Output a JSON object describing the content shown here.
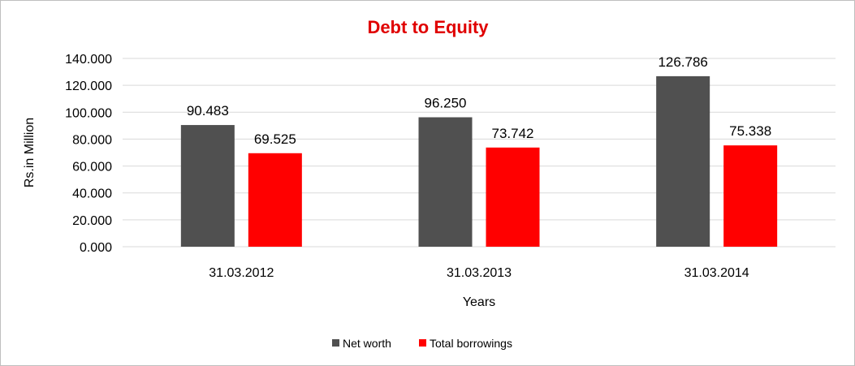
{
  "chart_data": {
    "type": "bar",
    "title": "Debt to Equity",
    "xlabel": "Years",
    "ylabel": "Rs.in Million",
    "categories": [
      "31.03.2012",
      "31.03.2013",
      "31.03.2014"
    ],
    "series": [
      {
        "name": "Net worth",
        "values": [
          90.483,
          96.25,
          126.786
        ],
        "labels": [
          "90.483",
          "96.250",
          "126.786"
        ],
        "color": "#505050"
      },
      {
        "name": "Total borrowings",
        "values": [
          69.525,
          73.742,
          75.338
        ],
        "labels": [
          "69.525",
          "73.742",
          "75.338"
        ],
        "color": "#ff0000"
      }
    ],
    "ylim": [
      0,
      140
    ],
    "yticks": [
      "0.000",
      "20.000",
      "40.000",
      "60.000",
      "80.000",
      "100.000",
      "120.000",
      "140.000"
    ],
    "grid": true,
    "legend": "bottom-center",
    "title_color": "#e00000",
    "grid_color": "#d9d9d9"
  }
}
